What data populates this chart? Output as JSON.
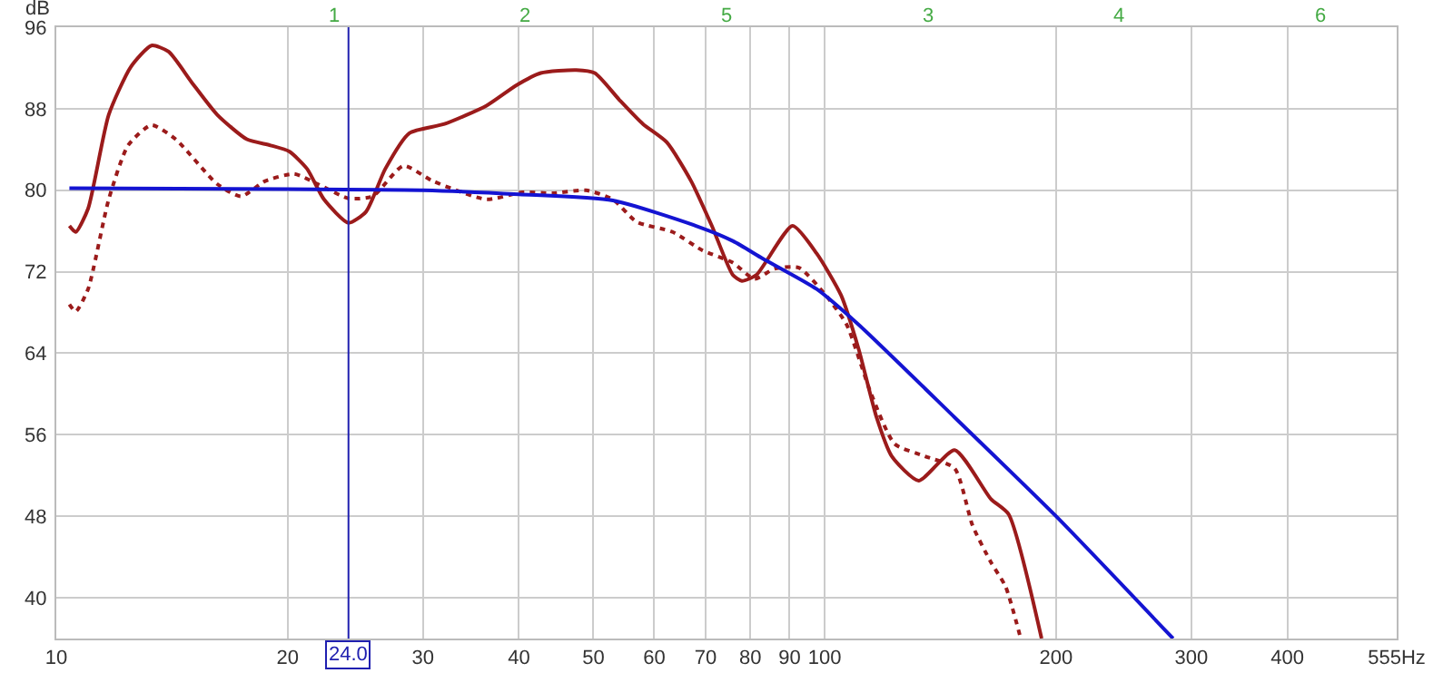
{
  "chart_data": {
    "type": "line",
    "ylabel": "dB",
    "log": "x",
    "grid": true,
    "marker": "none",
    "xlim": [
      10,
      555
    ],
    "ylim": [
      36,
      96
    ],
    "xticks": [
      10,
      20,
      30,
      40,
      50,
      60,
      70,
      80,
      90,
      100,
      200,
      300,
      400,
      {
        "value": 555,
        "label": "555Hz"
      }
    ],
    "yticks": [
      40,
      48,
      56,
      64,
      72,
      80,
      88,
      96
    ],
    "series": [
      {
        "color": "#9b1b1b",
        "line_style": "solid",
        "x": [
          10.4,
          10.6,
          11.0,
          11.7,
          12.5,
          13.3,
          14.0,
          15.0,
          16.2,
          17.7,
          19.0,
          20.1,
          21.2,
          22.3,
          24.0,
          25.3,
          26.8,
          28.8,
          32.0,
          36.3,
          39.7,
          42.7,
          47.5,
          50.2,
          54.0,
          58.0,
          62.3,
          67.0,
          71.3,
          75.9,
          78.0,
          81.5,
          90.8,
          97.6,
          105,
          110.7,
          116.8,
          122.2,
          132.5,
          147.6,
          164.5,
          173.5,
          191.5
        ],
        "values": [
          76.5,
          75.9,
          78.2,
          87.4,
          92.1,
          94.2,
          93.6,
          90.6,
          87.4,
          85.0,
          84.4,
          83.8,
          82.1,
          79.1,
          76.8,
          77.9,
          82.1,
          85.6,
          86.5,
          88.3,
          90.3,
          91.5,
          91.8,
          91.5,
          88.9,
          86.5,
          84.7,
          80.9,
          76.5,
          71.7,
          71.1,
          71.7,
          76.5,
          73.8,
          69.7,
          64.4,
          57.7,
          53.9,
          51.5,
          54.5,
          49.7,
          48.2,
          36.0
        ]
      },
      {
        "color": "#9b1b1b",
        "line_style": "dotted",
        "x": [
          10.4,
          10.6,
          11.0,
          11.7,
          12.4,
          13.3,
          14.3,
          16.2,
          17.4,
          18.7,
          20.4,
          21.9,
          24.0,
          25.8,
          28.3,
          30.9,
          36.3,
          40.4,
          44.3,
          48.9,
          53.0,
          56.9,
          63.4,
          69.3,
          75.9,
          81,
          86.1,
          92.5,
          100.3,
          106.8,
          114.8,
          123.3,
          134.9,
          147.6,
          155.7,
          164.5,
          171.9,
          179.9
        ],
        "values": [
          68.8,
          68.1,
          70.3,
          79.1,
          84.4,
          86.4,
          85.0,
          80.6,
          79.4,
          80.9,
          81.6,
          80.6,
          79.2,
          79.4,
          82.4,
          80.9,
          79.1,
          79.8,
          79.7,
          80.0,
          79.1,
          76.9,
          75.9,
          74.1,
          72.9,
          71.3,
          72.3,
          72.4,
          69.7,
          66.8,
          60.1,
          55.1,
          53.9,
          52.7,
          47.1,
          43.5,
          41.1,
          36.0
        ]
      },
      {
        "color": "#1414d2",
        "line_style": "solid",
        "x": [
          10.4,
          20,
          30,
          40,
          53,
          68,
          76,
          83,
          97.6,
          110.7,
          147.6,
          200,
          284
        ],
        "values": [
          80.2,
          80.1,
          80.0,
          79.6,
          79.0,
          76.5,
          75.0,
          73.3,
          70.3,
          66.8,
          57.7,
          48.0,
          36.0
        ]
      }
    ],
    "ref_lines": [
      {
        "axis": "x",
        "value": 24,
        "label": "24.0",
        "color": "#2020b0"
      }
    ],
    "annotations": [
      "1",
      "2",
      "5",
      "3",
      "4",
      "6"
    ]
  }
}
